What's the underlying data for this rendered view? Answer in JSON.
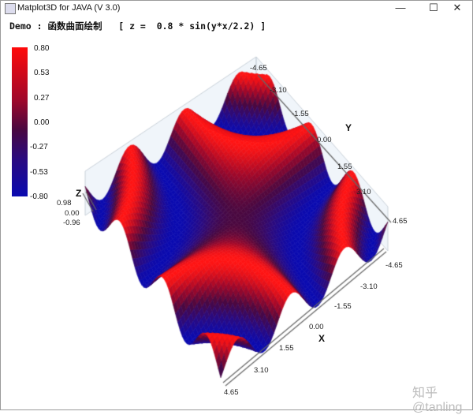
{
  "window": {
    "title": "Matplot3D for JAVA (V 3.0)",
    "controls": {
      "minimize": "—",
      "maximize": "☐",
      "close": "✕"
    }
  },
  "header": {
    "text": "Demo : 函数曲面绘制   [ z =  0.8 * sin(y*x/2.2) ]"
  },
  "watermark": "知乎 @tanling",
  "chart_data": {
    "type": "surface",
    "function": "z = 0.8 * sin(y*x/2.2)",
    "xlim": [
      -4.65,
      4.65
    ],
    "ylim": [
      -4.65,
      4.65
    ],
    "zlim": [
      -0.96,
      0.98
    ],
    "xlabel": "X",
    "ylabel": "Y",
    "zlabel": "Z",
    "x_ticks": [
      "-4.65",
      "-3.10",
      "-1.55",
      "0.00",
      "1.55",
      "3.10",
      "4.65"
    ],
    "y_ticks": [
      "-4.65",
      "-3.10",
      "-1.55",
      "0.00",
      "1.55",
      "3.10",
      "4.65"
    ],
    "z_ticks": [
      "0.98",
      "0.00",
      "-0.96"
    ],
    "colorbar": {
      "ticks": [
        "0.80",
        "0.53",
        "0.27",
        "0.00",
        "-0.27",
        "-0.53",
        "-0.80"
      ],
      "high_color": "#ff0a0a",
      "mid_color": "#4a0840",
      "low_color": "#0a0ab0"
    }
  }
}
